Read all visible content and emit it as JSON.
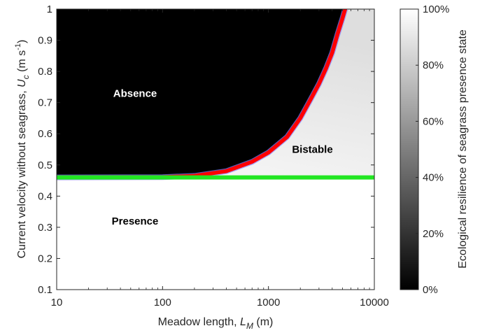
{
  "chart_data": {
    "type": "heatmap",
    "xlabel": {
      "prefix": "Meadow length, ",
      "symbol": "L",
      "subscript": "M",
      "suffix": " (m)"
    },
    "ylabel": {
      "prefix": "Current velocity without seagrass, ",
      "symbol": "U",
      "subscript": "c",
      "unit_open": " (m s",
      "unit_sup": "-1",
      "unit_close": ")"
    },
    "x_scale": "log",
    "xlim": [
      10,
      10000
    ],
    "ylim": [
      0.1,
      1
    ],
    "x_ticks": [
      "10",
      "100",
      "1000",
      "10000"
    ],
    "y_ticks": [
      "0.1",
      "0.2",
      "0.3",
      "0.4",
      "0.5",
      "0.6",
      "0.7",
      "0.8",
      "0.9",
      "1"
    ],
    "colorbar": {
      "label": "Ecological resilience of seagrass presence state",
      "range": [
        0,
        100
      ],
      "colormap": "gray",
      "ticks": [
        "0%",
        "20%",
        "40%",
        "60%",
        "80%",
        "100%"
      ]
    },
    "regions": [
      {
        "label": "Absence",
        "x": 55,
        "y": 0.73,
        "resilience_pct": 0
      },
      {
        "label": "Bistable",
        "x": 2600,
        "y": 0.55,
        "resilience_pct": 95
      },
      {
        "label": "Presence",
        "x": 55,
        "y": 0.32,
        "resilience_pct": 100
      }
    ],
    "horizontal_threshold": {
      "y": 0.46,
      "color": "#22e622"
    },
    "boundary_curve": {
      "color": "#ff0000",
      "points": [
        [
          10,
          0.46
        ],
        [
          100,
          0.461
        ],
        [
          200,
          0.465
        ],
        [
          400,
          0.48
        ],
        [
          700,
          0.51
        ],
        [
          1000,
          0.54
        ],
        [
          1500,
          0.59
        ],
        [
          2000,
          0.65
        ],
        [
          2500,
          0.71
        ],
        [
          3000,
          0.76
        ],
        [
          3500,
          0.81
        ],
        [
          4000,
          0.86
        ],
        [
          4500,
          0.92
        ],
        [
          5000,
          0.97
        ],
        [
          5300,
          1.0
        ]
      ]
    }
  }
}
